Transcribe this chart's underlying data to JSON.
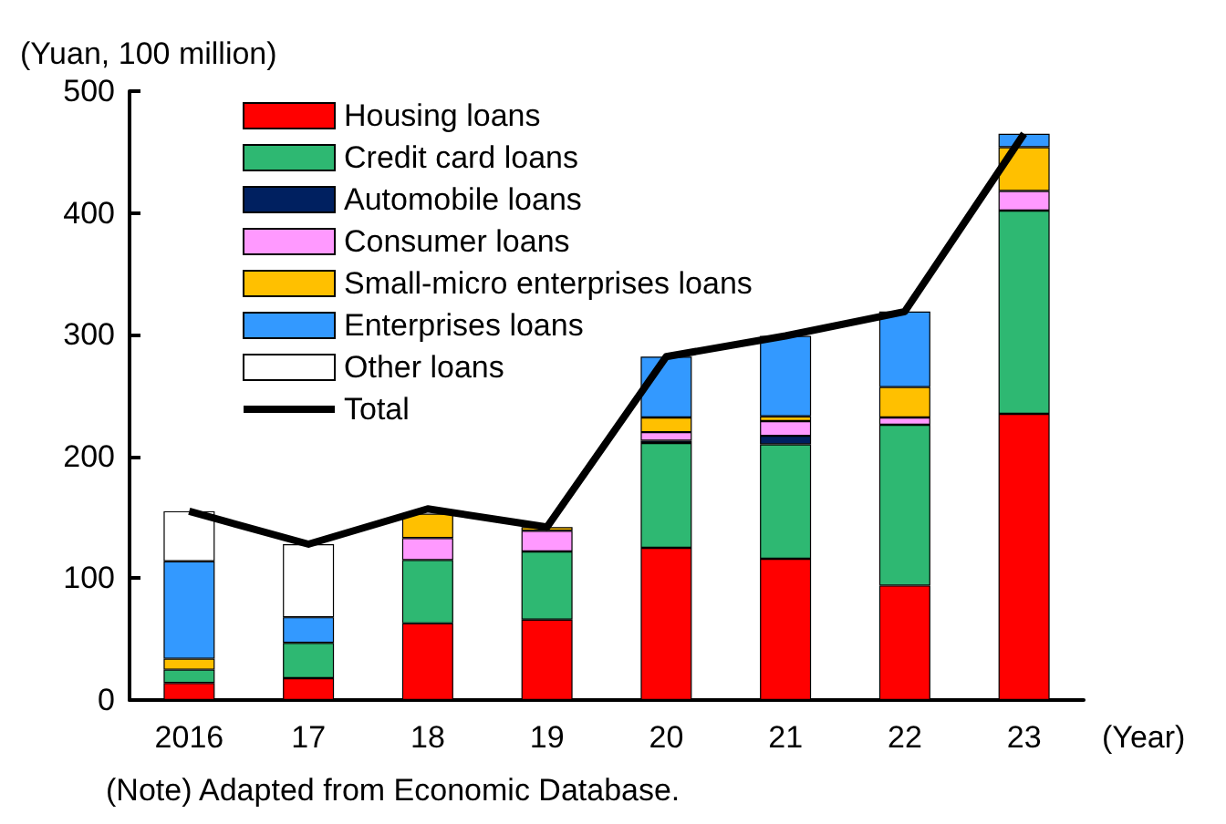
{
  "chart_data": {
    "type": "bar",
    "stacked": true,
    "ylabel": "(Yuan, 100 million)",
    "xlabel": "(Year)",
    "categories": [
      "2016",
      "17",
      "18",
      "19",
      "20",
      "21",
      "22",
      "23"
    ],
    "ylim": [
      0,
      500
    ],
    "yticks": [
      0,
      100,
      200,
      300,
      400,
      500
    ],
    "grid": false,
    "legend": "top left",
    "annotations": [
      "(Note) Adapted from Economic Database."
    ],
    "series": [
      {
        "name": "Housing loans",
        "color": "#ff0000",
        "values": [
          14,
          18,
          63,
          66,
          125,
          116,
          94,
          235
        ]
      },
      {
        "name": "Credit card loans",
        "color": "#2eb872",
        "values": [
          11,
          29,
          52,
          56,
          86,
          94,
          132,
          167
        ]
      },
      {
        "name": "Automobile loans",
        "color": "#002060",
        "values": [
          0,
          0,
          0,
          0,
          2,
          7,
          0,
          0
        ]
      },
      {
        "name": "Consumer loans",
        "color": "#ff99ff",
        "values": [
          0,
          0,
          18,
          17,
          7,
          12,
          6,
          16
        ]
      },
      {
        "name": "Small-micro enterprises loans",
        "color": "#ffc000",
        "values": [
          9,
          0,
          20,
          3,
          12,
          4,
          25,
          36
        ]
      },
      {
        "name": "Enterprises loans",
        "color": "#3399ff",
        "values": [
          80,
          21,
          null,
          0,
          50,
          66,
          62,
          11
        ]
      },
      {
        "name": "Other loans",
        "color": "#ffffff",
        "values": [
          41,
          60,
          0,
          0,
          0,
          0,
          0,
          0
        ]
      },
      {
        "name": "Total",
        "type": "line",
        "color": "#000000",
        "values": [
          155,
          128,
          157,
          142,
          282,
          299,
          319,
          465
        ]
      }
    ]
  }
}
